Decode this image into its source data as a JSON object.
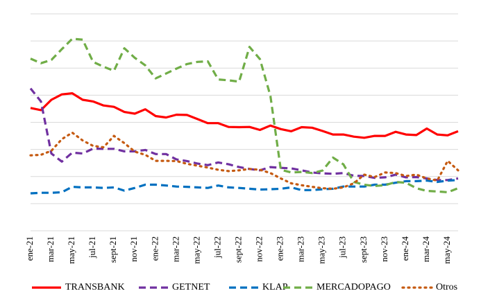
{
  "chart_data": {
    "type": "line",
    "title": "",
    "xlabel": "",
    "ylabel": "",
    "grid": true,
    "legend_position": "bottom",
    "x": [
      "ene-21",
      "feb-21",
      "mar-21",
      "abr-21",
      "may-21",
      "jun-21",
      "jul-21",
      "ago-21",
      "sept-21",
      "oct-21",
      "nov-21",
      "dic-21",
      "ene-22",
      "feb-22",
      "mar-22",
      "abr-22",
      "may-22",
      "jun-22",
      "jul-22",
      "ago-22",
      "sept-22",
      "oct-22",
      "nov-22",
      "dic-22",
      "ene-23",
      "feb-23",
      "mar-23",
      "abr-23",
      "may-23",
      "jun-23",
      "jul-23",
      "ago-23",
      "sept-23",
      "oct-23",
      "nov-23",
      "dic-23",
      "ene-24",
      "feb-24",
      "mar-24",
      "abr-24",
      "may-24",
      "jun-24"
    ],
    "x_tick_labels": [
      "ene-21",
      "mar-21",
      "may-21",
      "jul-21",
      "sept-21",
      "nov-21",
      "ene-22",
      "mar-22",
      "may-22",
      "jul-22",
      "sept-22",
      "nov-22",
      "ene-23",
      "mar-23",
      "may-23",
      "jul-23",
      "sept-23",
      "nov-23",
      "ene-24",
      "mar-24",
      "may-24"
    ],
    "ylim": [
      0,
      8
    ],
    "y_gridlines": [
      1,
      2,
      3,
      4,
      5,
      6,
      7,
      8
    ],
    "series": [
      {
        "name": "TRANSBANK",
        "color": "#ff0000",
        "dash": "solid",
        "values": [
          4.53,
          4.45,
          4.83,
          5.03,
          5.07,
          4.83,
          4.77,
          4.62,
          4.57,
          4.38,
          4.32,
          4.48,
          4.23,
          4.18,
          4.28,
          4.27,
          4.12,
          3.97,
          3.97,
          3.83,
          3.82,
          3.83,
          3.72,
          3.88,
          3.75,
          3.67,
          3.82,
          3.8,
          3.68,
          3.55,
          3.55,
          3.47,
          3.43,
          3.5,
          3.5,
          3.65,
          3.55,
          3.53,
          3.77,
          3.55,
          3.52,
          3.67
        ]
      },
      {
        "name": "GETNET",
        "color": "#7030a0",
        "dash": "dash",
        "values": [
          5.25,
          4.77,
          2.85,
          2.55,
          2.88,
          2.85,
          3.03,
          3.02,
          3.02,
          2.93,
          2.93,
          2.98,
          2.83,
          2.83,
          2.63,
          2.57,
          2.48,
          2.42,
          2.52,
          2.45,
          2.35,
          2.28,
          2.23,
          2.35,
          2.32,
          2.3,
          2.23,
          2.15,
          2.12,
          2.1,
          2.13,
          2.03,
          2.02,
          1.95,
          1.97,
          2.07,
          1.97,
          1.98,
          1.93,
          1.87,
          1.87,
          1.93
        ]
      },
      {
        "name": "KLAP",
        "color": "#0070c0",
        "dash": "dash",
        "values": [
          1.38,
          1.4,
          1.4,
          1.42,
          1.62,
          1.6,
          1.6,
          1.58,
          1.6,
          1.48,
          1.58,
          1.7,
          1.7,
          1.67,
          1.63,
          1.62,
          1.6,
          1.58,
          1.67,
          1.6,
          1.58,
          1.55,
          1.52,
          1.53,
          1.55,
          1.6,
          1.5,
          1.5,
          1.53,
          1.55,
          1.63,
          1.63,
          1.63,
          1.7,
          1.7,
          1.77,
          1.83,
          1.83,
          1.85,
          1.8,
          1.85,
          1.87
        ]
      },
      {
        "name": "MERCADOPAGO",
        "color": "#70ad47",
        "dash": "dash",
        "values": [
          6.35,
          6.18,
          6.3,
          6.7,
          7.08,
          7.05,
          6.23,
          6.05,
          5.9,
          6.73,
          6.38,
          6.1,
          5.62,
          5.8,
          5.98,
          6.15,
          6.23,
          6.25,
          5.58,
          5.55,
          5.5,
          6.78,
          6.33,
          4.97,
          2.25,
          2.15,
          2.17,
          2.13,
          2.22,
          2.7,
          2.45,
          1.8,
          1.7,
          1.65,
          1.68,
          1.8,
          1.77,
          1.57,
          1.47,
          1.45,
          1.42,
          1.57
        ]
      },
      {
        "name": "Otros",
        "color": "#c55a11",
        "dash": "dot",
        "values": [
          2.78,
          2.8,
          2.95,
          3.38,
          3.62,
          3.33,
          3.13,
          3.08,
          3.5,
          3.23,
          2.92,
          2.8,
          2.58,
          2.58,
          2.57,
          2.47,
          2.4,
          2.33,
          2.25,
          2.2,
          2.23,
          2.28,
          2.25,
          2.13,
          1.93,
          1.75,
          1.68,
          1.62,
          1.57,
          1.55,
          1.6,
          1.75,
          2.07,
          1.98,
          2.15,
          2.13,
          2.02,
          2.07,
          1.93,
          1.85,
          2.58,
          2.23
        ]
      }
    ]
  }
}
